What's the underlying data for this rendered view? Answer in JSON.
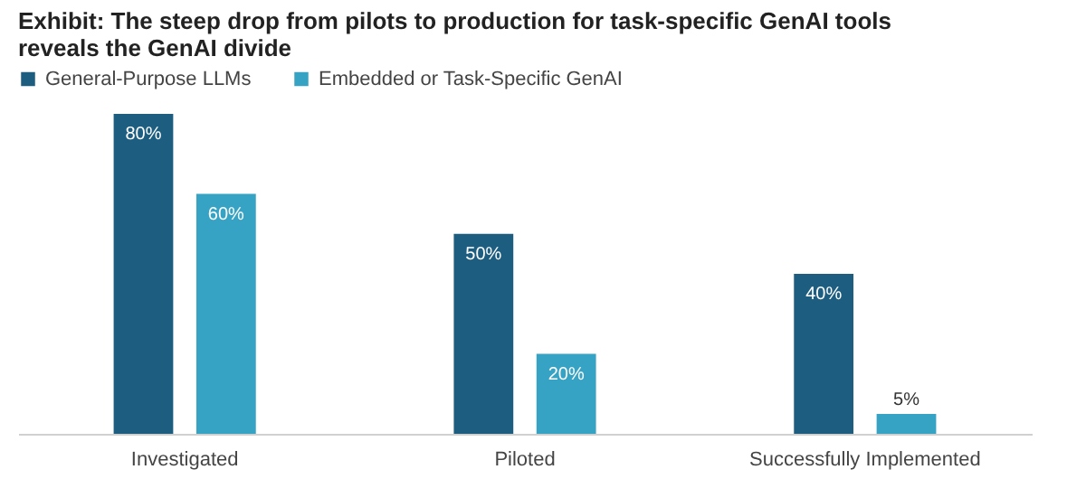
{
  "chart_data": {
    "type": "bar",
    "title": "Exhibit: The steep drop from pilots to production for task-specific GenAI tools reveals the GenAI divide",
    "categories": [
      "Investigated",
      "Piloted",
      "Successfully Implemented"
    ],
    "series": [
      {
        "name": "General-Purpose LLMs",
        "color": "#1c5d80",
        "values": [
          80,
          50,
          40
        ],
        "value_labels": [
          "80%",
          "50%",
          "40%"
        ]
      },
      {
        "name": "Embedded or Task-Specific GenAI",
        "color": "#36a3c4",
        "values": [
          60,
          20,
          5
        ],
        "value_labels": [
          "60%",
          "20%",
          "5%"
        ]
      }
    ],
    "legend": "top"
  }
}
